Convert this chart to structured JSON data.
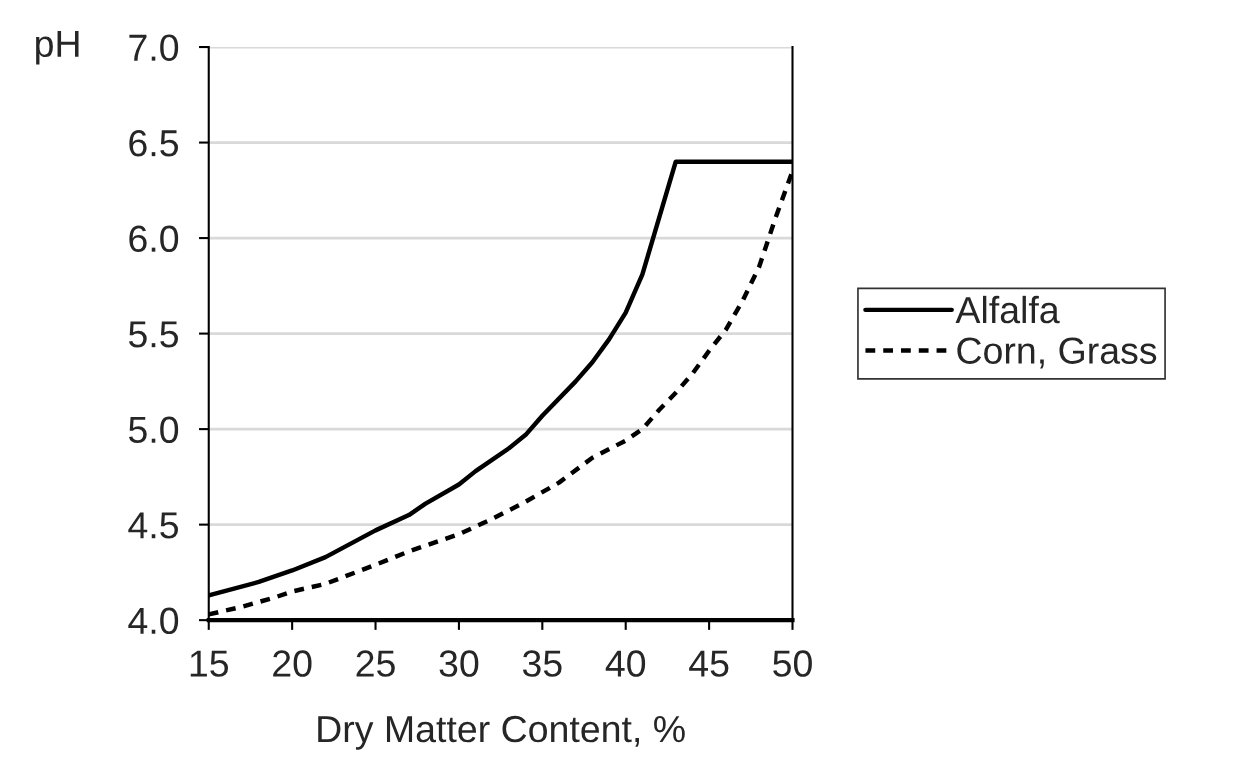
{
  "chart_data": {
    "type": "line",
    "xlabel": "Dry Matter Content, %",
    "ylabel": "pH",
    "xlim": [
      15,
      50
    ],
    "xticks": [
      15,
      20,
      25,
      30,
      35,
      40,
      45,
      50
    ],
    "ylim": [
      4.0,
      7.0
    ],
    "yticks": [
      {
        "value": 4.0,
        "label": "4.0"
      },
      {
        "value": 4.5,
        "label": "4.5"
      },
      {
        "value": 5.0,
        "label": "5.0"
      },
      {
        "value": 5.5,
        "label": "5.5"
      },
      {
        "value": 6.0,
        "label": "6.0"
      },
      {
        "value": 6.5,
        "label": "6.5"
      },
      {
        "value": 7.0,
        "label": "7.0"
      }
    ],
    "grid": "y",
    "legend": "right",
    "series": [
      {
        "name": "Alfalfa",
        "color": "#000000",
        "line_style": "solid",
        "x": [
          15,
          18,
          20,
          22,
          25,
          27,
          28,
          30,
          31,
          33,
          34,
          35,
          37,
          38,
          39,
          40,
          41,
          43,
          50
        ],
        "values": [
          4.13,
          4.2,
          4.26,
          4.33,
          4.47,
          4.55,
          4.61,
          4.71,
          4.78,
          4.9,
          4.97,
          5.07,
          5.25,
          5.35,
          5.47,
          5.61,
          5.81,
          6.4,
          6.4
        ]
      },
      {
        "name": "Corn, Grass",
        "color": "#000000",
        "line_style": "dotted",
        "x": [
          15,
          17,
          19,
          20,
          22,
          25,
          27,
          30,
          32,
          34,
          36,
          38,
          40,
          41,
          42,
          43,
          44,
          45,
          46,
          47,
          48,
          49,
          50
        ],
        "values": [
          4.03,
          4.07,
          4.12,
          4.15,
          4.19,
          4.29,
          4.36,
          4.45,
          4.53,
          4.62,
          4.72,
          4.85,
          4.94,
          5.0,
          5.1,
          5.19,
          5.29,
          5.41,
          5.52,
          5.67,
          5.85,
          6.11,
          6.35
        ]
      }
    ]
  }
}
